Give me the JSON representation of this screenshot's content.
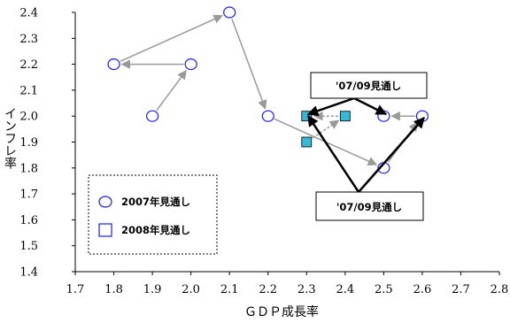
{
  "chart_data": {
    "type": "scatter",
    "title": "",
    "xlabel": "ＧＤＰ成長率",
    "ylabel": "インフレ率",
    "xlim": [
      1.7,
      2.8
    ],
    "ylim": [
      1.4,
      2.4
    ],
    "xticks": [
      "1.7",
      "1.8",
      "1.9",
      "2.0",
      "2.1",
      "2.2",
      "2.3",
      "2.4",
      "2.5",
      "2.6",
      "2.7",
      "2.8"
    ],
    "yticks": [
      "1.4",
      "1.5",
      "1.6",
      "1.7",
      "1.8",
      "1.9",
      "2.0",
      "2.1",
      "2.2",
      "2.3",
      "2.4"
    ],
    "grid": false,
    "legend_position": "bottom-left",
    "series": [
      {
        "name": "2007年見通し",
        "marker": "circle",
        "marker_color": "#1a1aff",
        "points": [
          {
            "x": 1.9,
            "y": 2.0
          },
          {
            "x": 2.0,
            "y": 2.2
          },
          {
            "x": 1.8,
            "y": 2.2
          },
          {
            "x": 2.1,
            "y": 2.4
          },
          {
            "x": 2.2,
            "y": 2.0
          },
          {
            "x": 2.5,
            "y": 1.8
          },
          {
            "x": 2.6,
            "y": 2.0
          },
          {
            "x": 2.5,
            "y": 2.0
          }
        ]
      },
      {
        "name": "2008年見通し",
        "marker": "square",
        "marker_color": "#33b8d6",
        "points": [
          {
            "x": 2.3,
            "y": 1.9
          },
          {
            "x": 2.4,
            "y": 2.0
          },
          {
            "x": 2.3,
            "y": 2.0
          }
        ]
      }
    ],
    "annotations": [
      "'07/09見通し",
      "'07/09見通し"
    ],
    "colors": {
      "connector": "#999999",
      "callout": "#000000"
    }
  }
}
